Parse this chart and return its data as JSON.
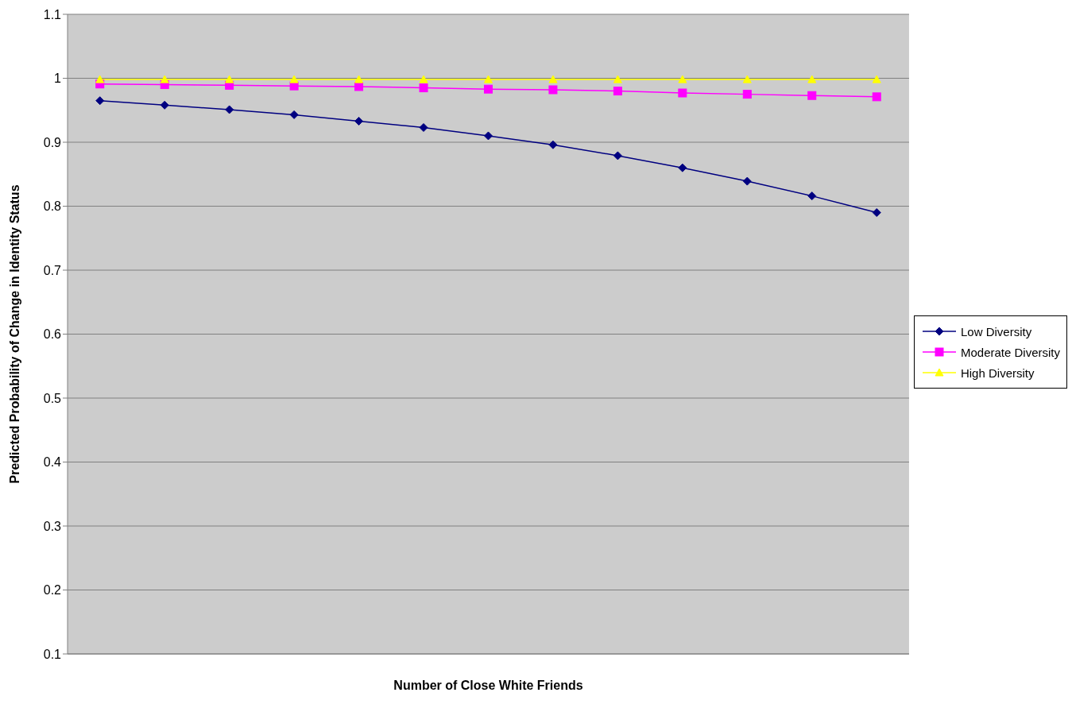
{
  "chart_data": {
    "type": "line",
    "xlabel": "Number of Close White Friends",
    "ylabel": "Predicted Probability of Change in Identity Status",
    "categories": [
      null,
      null,
      null,
      null,
      null,
      null,
      null,
      null,
      null,
      null,
      null,
      null,
      null
    ],
    "series": [
      {
        "name": "Low Diversity",
        "color": "#000080",
        "marker": "diamond",
        "values": [
          0.965,
          0.958,
          0.951,
          0.943,
          0.933,
          0.923,
          0.91,
          0.896,
          0.879,
          0.86,
          0.839,
          0.816,
          0.79
        ]
      },
      {
        "name": "Moderate Diversity",
        "color": "#ff00ff",
        "marker": "square",
        "values": [
          0.991,
          0.99,
          0.989,
          0.988,
          0.987,
          0.985,
          0.983,
          0.982,
          0.98,
          0.977,
          0.975,
          0.973,
          0.971
        ]
      },
      {
        "name": "High Diversity",
        "color": "#ffff00",
        "marker": "triangle",
        "values": [
          0.998,
          0.998,
          0.998,
          0.998,
          0.998,
          0.998,
          0.998,
          0.998,
          0.998,
          0.998,
          0.998,
          0.998,
          0.998
        ]
      }
    ],
    "ylim": [
      0.1,
      1.1
    ],
    "yticks": [
      0.1,
      0.2,
      0.3,
      0.4,
      0.5,
      0.6,
      0.7,
      0.8,
      0.9,
      1,
      1.1
    ],
    "grid": "y",
    "legend": "right",
    "tick_labels": "y",
    "line_style": "solid"
  }
}
